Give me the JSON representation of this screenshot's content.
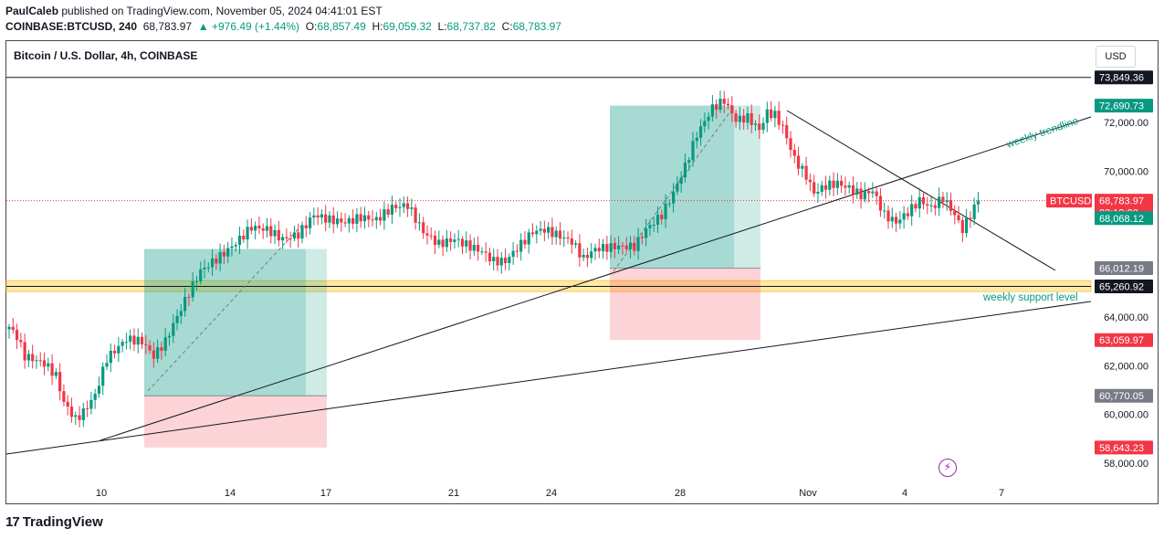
{
  "header": {
    "publisher": "PaulCaleb",
    "published_text": " published on TradingView.com, November 05, 2024 04:41:01 EST",
    "symbol": "COINBASE:BTCUSD, 240",
    "last": "68,783.97",
    "change": "▲ +976.49 (+1.44%)",
    "o_label": "O:",
    "o": "68,857.49",
    "h_label": "H:",
    "h": "69,059.32",
    "l_label": "L:",
    "l": "68,737.82",
    "c_label": "C:",
    "c": "68,783.97"
  },
  "chart_title": "Bitcoin / U.S. Dollar, 4h, COINBASE",
  "currency_button": "USD",
  "footer": {
    "brand": "TradingView",
    "logo_glyph": "17"
  },
  "colors": {
    "up": "#089981",
    "down": "#f23645",
    "support_band": "#ffe9a6",
    "long_tp": "#089981",
    "long_sl": "#f23645"
  },
  "chart_data": {
    "type": "candlestick",
    "title": "Bitcoin / U.S. Dollar, 4h, COINBASE",
    "ylim": [
      57300,
      75000
    ],
    "y_ticks": [
      "58,000.00",
      "60,000.00",
      "62,000.00",
      "64,000.00",
      "66,000.00",
      "68,000.00",
      "70,000.00",
      "72,000.00"
    ],
    "x_ticks": [
      "10",
      "14",
      "17",
      "21",
      "24",
      "28",
      "Nov",
      "4",
      "7"
    ],
    "price_labels": [
      {
        "text": "73,849.36",
        "value": 73849.36,
        "style": "dark"
      },
      {
        "text": "72,690.73",
        "value": 72690.73,
        "style": "green"
      },
      {
        "text": "68,783.97",
        "value": 68783.97,
        "style": "red",
        "tag": "BTCUSD",
        "countdown": "02:19:00"
      },
      {
        "text": "68,068.12",
        "value": 68068.12,
        "style": "green"
      },
      {
        "text": "66,012.19",
        "value": 66012.19,
        "style": "gray"
      },
      {
        "text": "65,260.92",
        "value": 65260.92,
        "style": "dark"
      },
      {
        "text": "63,059.97",
        "value": 63059.97,
        "style": "red"
      },
      {
        "text": "60,770.05",
        "value": 60770.05,
        "style": "gray"
      },
      {
        "text": "58,643.23",
        "value": 58643.23,
        "style": "red"
      }
    ],
    "annotations": [
      "weekly trendline",
      "weekly support level"
    ],
    "last_price": 68783.97,
    "anchors": [
      [
        0,
        63600
      ],
      [
        2,
        63200
      ],
      [
        4,
        62400
      ],
      [
        9,
        62100
      ],
      [
        12,
        61600
      ],
      [
        14,
        60500
      ],
      [
        17,
        59800
      ],
      [
        19,
        60100
      ],
      [
        22,
        60800
      ],
      [
        25,
        62300
      ],
      [
        30,
        63100
      ],
      [
        34,
        63000
      ],
      [
        37,
        62400
      ],
      [
        40,
        63000
      ],
      [
        42,
        63700
      ],
      [
        46,
        65000
      ],
      [
        49,
        65900
      ],
      [
        54,
        66500
      ],
      [
        57,
        66900
      ],
      [
        59,
        67200
      ],
      [
        62,
        67700
      ],
      [
        66,
        67600
      ],
      [
        70,
        67200
      ],
      [
        74,
        67400
      ],
      [
        78,
        68200
      ],
      [
        82,
        68000
      ],
      [
        86,
        67900
      ],
      [
        90,
        68100
      ],
      [
        94,
        68000
      ],
      [
        98,
        68500
      ],
      [
        102,
        68600
      ],
      [
        106,
        67500
      ],
      [
        110,
        67000
      ],
      [
        114,
        67200
      ],
      [
        118,
        66900
      ],
      [
        121,
        66700
      ],
      [
        124,
        66300
      ],
      [
        127,
        66300
      ],
      [
        131,
        67000
      ],
      [
        134,
        67500
      ],
      [
        137,
        67600
      ],
      [
        140,
        67400
      ],
      [
        144,
        67100
      ],
      [
        147,
        66400
      ],
      [
        150,
        66800
      ],
      [
        155,
        66900
      ],
      [
        160,
        66900
      ],
      [
        163,
        67600
      ],
      [
        167,
        68200
      ],
      [
        170,
        69100
      ],
      [
        173,
        70200
      ],
      [
        176,
        71500
      ],
      [
        180,
        72600
      ],
      [
        183,
        72900
      ],
      [
        186,
        72100
      ],
      [
        189,
        72200
      ],
      [
        192,
        71700
      ],
      [
        194,
        72400
      ],
      [
        196,
        72300
      ],
      [
        198,
        71800
      ],
      [
        201,
        70500
      ],
      [
        204,
        69800
      ],
      [
        206,
        69100
      ],
      [
        209,
        69400
      ],
      [
        212,
        69500
      ],
      [
        215,
        69300
      ],
      [
        218,
        69000
      ],
      [
        221,
        69200
      ],
      [
        224,
        68200
      ],
      [
        227,
        67900
      ],
      [
        230,
        68300
      ],
      [
        233,
        68800
      ],
      [
        236,
        68500
      ],
      [
        239,
        68900
      ],
      [
        242,
        68200
      ],
      [
        244,
        67600
      ],
      [
        246,
        68200
      ],
      [
        248,
        68780
      ]
    ],
    "long_positions": [
      {
        "entry": 60770.05,
        "target": 66800,
        "stop": 58643.23
      },
      {
        "entry": 66012.19,
        "target": 72690.73,
        "stop": 63059.97
      }
    ]
  }
}
